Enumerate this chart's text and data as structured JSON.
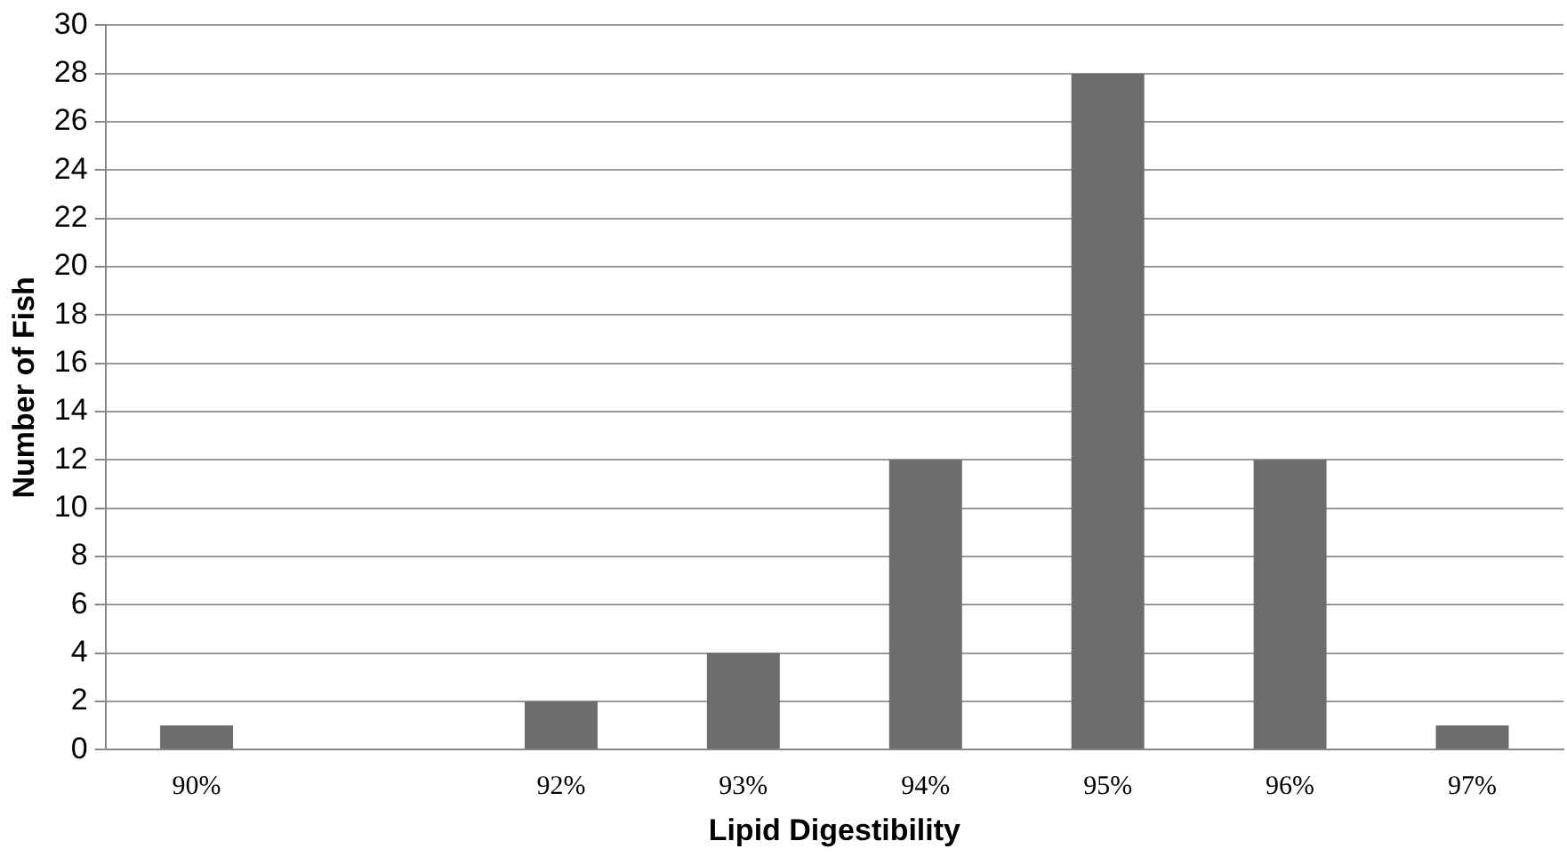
{
  "chart_data": {
    "type": "bar",
    "xlabel": "Lipid Digestibility",
    "ylabel": "Number of Fish",
    "categories": [
      "90%",
      null,
      "92%",
      "93%",
      "94%",
      "95%",
      "96%",
      "97%"
    ],
    "values": [
      1,
      0,
      2,
      4,
      12,
      28,
      12,
      1
    ],
    "color": "#6d6d6d",
    "ylim": [
      0,
      30
    ],
    "yticks": [
      0,
      2,
      4,
      6,
      8,
      10,
      12,
      14,
      16,
      18,
      20,
      22,
      24,
      26,
      28,
      30
    ],
    "grid": "y"
  }
}
